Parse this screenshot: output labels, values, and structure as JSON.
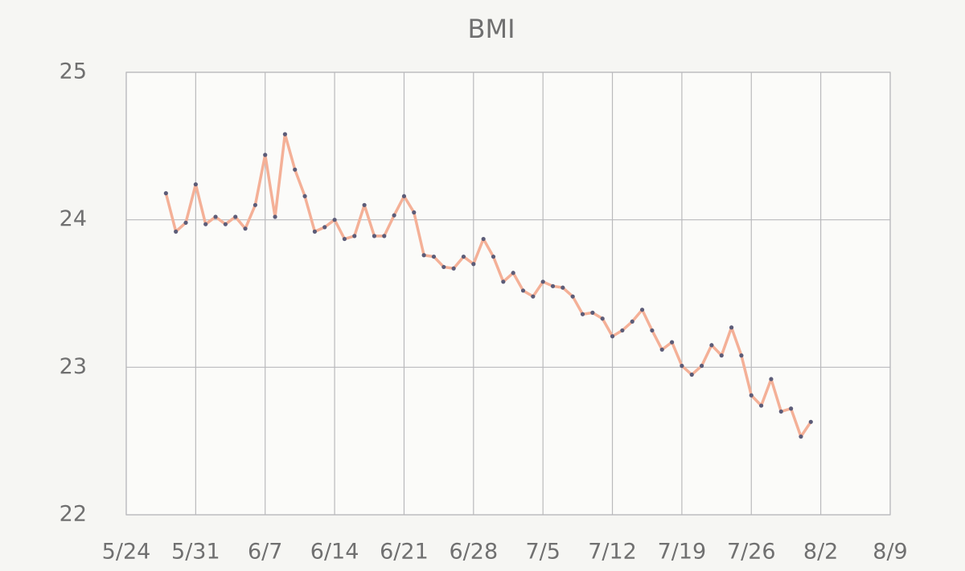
{
  "chart_data": {
    "type": "line",
    "title": "BMI",
    "x": [
      "5/28",
      "5/29",
      "5/30",
      "5/31",
      "6/1",
      "6/2",
      "6/3",
      "6/4",
      "6/5",
      "6/6",
      "6/7",
      "6/8",
      "6/9",
      "6/10",
      "6/11",
      "6/12",
      "6/13",
      "6/14",
      "6/15",
      "6/16",
      "6/17",
      "6/18",
      "6/19",
      "6/20",
      "6/21",
      "6/22",
      "6/23",
      "6/24",
      "6/25",
      "6/26",
      "6/27",
      "6/28",
      "6/29",
      "6/30",
      "7/1",
      "7/2",
      "7/3",
      "7/4",
      "7/5",
      "7/6",
      "7/7",
      "7/8",
      "7/9",
      "7/10",
      "7/11",
      "7/12",
      "7/13",
      "7/14",
      "7/15",
      "7/16",
      "7/17",
      "7/18",
      "7/19",
      "7/20",
      "7/21",
      "7/22",
      "7/23",
      "7/24",
      "7/25",
      "7/26",
      "7/27",
      "7/28",
      "7/29",
      "7/30",
      "7/31",
      "8/1"
    ],
    "values": [
      24.18,
      23.92,
      23.98,
      24.24,
      23.97,
      24.02,
      23.97,
      24.02,
      23.94,
      24.1,
      24.44,
      24.02,
      24.58,
      24.34,
      24.16,
      23.92,
      23.95,
      24.0,
      23.87,
      23.89,
      24.1,
      23.89,
      23.89,
      24.03,
      24.16,
      24.05,
      23.76,
      23.75,
      23.68,
      23.67,
      23.75,
      23.7,
      23.87,
      23.75,
      23.58,
      23.64,
      23.52,
      23.48,
      23.58,
      23.55,
      23.54,
      23.48,
      23.36,
      23.37,
      23.33,
      23.21,
      23.25,
      23.31,
      23.39,
      23.25,
      23.12,
      23.17,
      23.01,
      22.95,
      23.01,
      23.15,
      23.08,
      23.27,
      23.08,
      22.81,
      22.74,
      22.92,
      22.7,
      22.72,
      22.53,
      22.63
    ],
    "color": "#f4b097",
    "marker_color": "#5c5c78",
    "xlim": [
      "5/24",
      "8/9"
    ],
    "xticks": [
      "5/24",
      "5/31",
      "6/7",
      "6/14",
      "6/21",
      "6/28",
      "7/5",
      "7/12",
      "7/19",
      "7/26",
      "8/2",
      "8/9"
    ],
    "ylim": [
      22,
      25
    ],
    "yticks": [
      22,
      23,
      24,
      25
    ],
    "grid": true
  }
}
